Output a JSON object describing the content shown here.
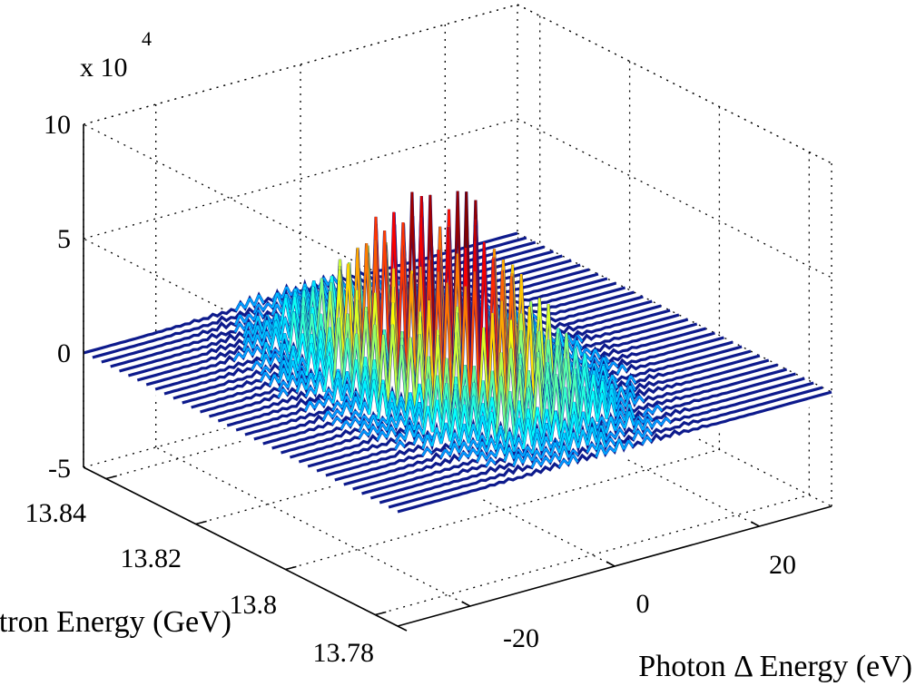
{
  "chart_data": {
    "type": "surface3d",
    "title": "",
    "xlabel": "Photon Δ Energy (eV)",
    "ylabel": "Electron Energy (GeV)",
    "zlabel": "",
    "z_exponent_label": "x 10",
    "z_exponent_value": "4",
    "x_ticks": [
      "-20",
      "0",
      "20"
    ],
    "y_ticks": [
      "13.78",
      "13.8",
      "13.82",
      "13.84"
    ],
    "z_ticks": [
      "-5",
      "0",
      "5",
      "10"
    ],
    "xlim": [
      -30,
      30
    ],
    "ylim": [
      13.775,
      13.845
    ],
    "zlim": [
      -50000,
      100000
    ],
    "grid": true,
    "colormap": "jet",
    "peak_region": {
      "x_range": [
        -12,
        8
      ],
      "y_range": [
        13.79,
        13.83
      ],
      "max_z": 80000
    }
  }
}
